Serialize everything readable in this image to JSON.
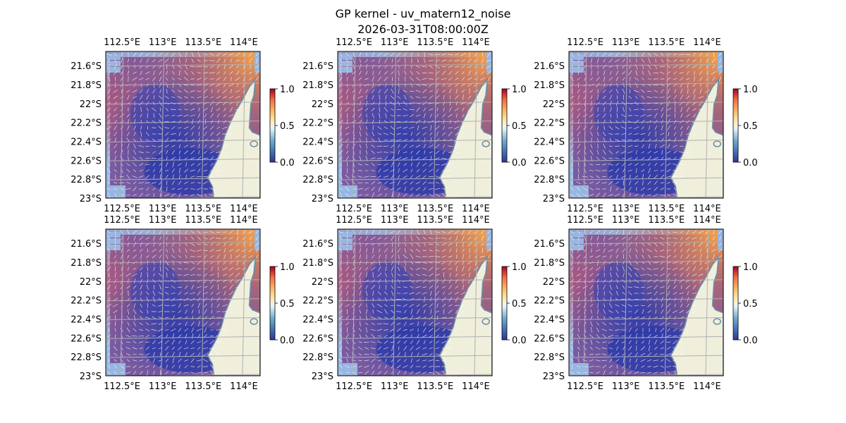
{
  "title": "GP kernel - uv_matern12_noise",
  "subtitle": "2026-03-31T08:00:00Z",
  "colors": {
    "ocean_bg": "#97b6e1",
    "land": "#efefdc",
    "coast": "#6e8aa6",
    "grid": "#b0b0b0",
    "vector": "#ffffff",
    "cmap_low": "#313695",
    "cmap_mid": "#f7f4e8",
    "cmap_high": "#a50026"
  },
  "chart_data": [
    {
      "type": "heatmap",
      "panel": "row1-col1",
      "xlabel": "",
      "ylabel": "",
      "xlim": [
        112.3,
        114.2
      ],
      "ylim": [
        -23.0,
        -21.45
      ],
      "x_ticks": [
        112.5,
        113.0,
        113.5,
        114.0
      ],
      "x_tick_labels": [
        "112.5°E",
        "113°E",
        "113.5°E",
        "114°E"
      ],
      "y_ticks": [
        -21.6,
        -21.8,
        -22.0,
        -22.2,
        -22.4,
        -22.6,
        -22.8,
        -23.0
      ],
      "y_tick_labels": [
        "21.6°S",
        "21.8°S",
        "22°S",
        "22.2°S",
        "22.4°S",
        "22.6°S",
        "22.8°S",
        "23°S"
      ],
      "colorbar": {
        "range": [
          0.0,
          1.0
        ],
        "ticks": [
          0.0,
          0.5,
          1.0
        ],
        "tick_labels": [
          "0.0",
          "0.5",
          "1.0"
        ]
      },
      "grid": true,
      "overlay": "vector field (quiver)"
    },
    {
      "type": "heatmap",
      "panel": "row1-col2",
      "xlabel": "",
      "ylabel": "",
      "xlim": [
        112.3,
        114.2
      ],
      "ylim": [
        -23.0,
        -21.45
      ],
      "x_ticks": [
        112.5,
        113.0,
        113.5,
        114.0
      ],
      "x_tick_labels": [
        "112.5°E",
        "113°E",
        "113.5°E",
        "114°E"
      ],
      "y_ticks": [
        -21.6,
        -21.8,
        -22.0,
        -22.2,
        -22.4,
        -22.6,
        -22.8,
        -23.0
      ],
      "y_tick_labels": [
        "21.6°S",
        "21.8°S",
        "22°S",
        "22.2°S",
        "22.4°S",
        "22.6°S",
        "22.8°S",
        "23°S"
      ],
      "colorbar": {
        "range": [
          0.0,
          1.0
        ],
        "ticks": [
          0.0,
          0.5,
          1.0
        ],
        "tick_labels": [
          "0.0",
          "0.5",
          "1.0"
        ]
      },
      "grid": true,
      "overlay": "vector field (quiver)"
    },
    {
      "type": "heatmap",
      "panel": "row1-col3",
      "xlabel": "",
      "ylabel": "",
      "xlim": [
        112.3,
        114.2
      ],
      "ylim": [
        -23.0,
        -21.45
      ],
      "x_ticks": [
        112.5,
        113.0,
        113.5,
        114.0
      ],
      "x_tick_labels": [
        "112.5°E",
        "113°E",
        "113.5°E",
        "114°E"
      ],
      "y_ticks": [
        -21.6,
        -21.8,
        -22.0,
        -22.2,
        -22.4,
        -22.6,
        -22.8,
        -23.0
      ],
      "y_tick_labels": [
        "21.6°S",
        "21.8°S",
        "22°S",
        "22.2°S",
        "22.4°S",
        "22.6°S",
        "22.8°S",
        "23°S"
      ],
      "colorbar": {
        "range": [
          0.0,
          1.0
        ],
        "ticks": [
          0.0,
          0.5,
          1.0
        ],
        "tick_labels": [
          "0.0",
          "0.5",
          "1.0"
        ]
      },
      "grid": true,
      "overlay": "vector field (quiver)"
    },
    {
      "type": "heatmap",
      "panel": "row2-col1",
      "xlabel": "",
      "ylabel": "",
      "xlim": [
        112.3,
        114.2
      ],
      "ylim": [
        -23.0,
        -21.45
      ],
      "x_ticks": [
        112.5,
        113.0,
        113.5,
        114.0
      ],
      "x_tick_labels": [
        "112.5°E",
        "113°E",
        "113.5°E",
        "114°E"
      ],
      "y_ticks": [
        -21.6,
        -21.8,
        -22.0,
        -22.2,
        -22.4,
        -22.6,
        -22.8,
        -23.0
      ],
      "y_tick_labels": [
        "21.6°S",
        "21.8°S",
        "22°S",
        "22.2°S",
        "22.4°S",
        "22.6°S",
        "22.8°S",
        "23°S"
      ],
      "colorbar": {
        "range": [
          0.0,
          1.0
        ],
        "ticks": [
          0.0,
          0.5,
          1.0
        ],
        "tick_labels": [
          "0.0",
          "0.5",
          "1.0"
        ]
      },
      "grid": true,
      "overlay": "vector field (quiver)"
    },
    {
      "type": "heatmap",
      "panel": "row2-col2",
      "xlabel": "",
      "ylabel": "",
      "xlim": [
        112.3,
        114.2
      ],
      "ylim": [
        -23.0,
        -21.45
      ],
      "x_ticks": [
        112.5,
        113.0,
        113.5,
        114.0
      ],
      "x_tick_labels": [
        "112.5°E",
        "113°E",
        "113.5°E",
        "114°E"
      ],
      "y_ticks": [
        -21.6,
        -21.8,
        -22.0,
        -22.2,
        -22.4,
        -22.6,
        -22.8,
        -23.0
      ],
      "y_tick_labels": [
        "21.6°S",
        "21.8°S",
        "22°S",
        "22.2°S",
        "22.4°S",
        "22.6°S",
        "22.8°S",
        "23°S"
      ],
      "colorbar": {
        "range": [
          0.0,
          1.0
        ],
        "ticks": [
          0.0,
          0.5,
          1.0
        ],
        "tick_labels": [
          "0.0",
          "0.5",
          "1.0"
        ]
      },
      "grid": true,
      "overlay": "vector field (quiver)"
    },
    {
      "type": "heatmap",
      "panel": "row2-col3",
      "xlabel": "",
      "ylabel": "",
      "xlim": [
        112.3,
        114.2
      ],
      "ylim": [
        -23.0,
        -21.45
      ],
      "x_ticks": [
        112.5,
        113.0,
        113.5,
        114.0
      ],
      "x_tick_labels": [
        "112.5°E",
        "113°E",
        "113.5°E",
        "114°E"
      ],
      "y_ticks": [
        -21.6,
        -21.8,
        -22.0,
        -22.2,
        -22.4,
        -22.6,
        -22.8,
        -23.0
      ],
      "y_tick_labels": [
        "21.6°S",
        "21.8°S",
        "22°S",
        "22.2°S",
        "22.4°S",
        "22.6°S",
        "22.8°S",
        "23°S"
      ],
      "colorbar": {
        "range": [
          0.0,
          1.0
        ],
        "ticks": [
          0.0,
          0.5,
          1.0
        ],
        "tick_labels": [
          "0.0",
          "0.5",
          "1.0"
        ]
      },
      "grid": true,
      "overlay": "vector field (quiver)"
    }
  ]
}
